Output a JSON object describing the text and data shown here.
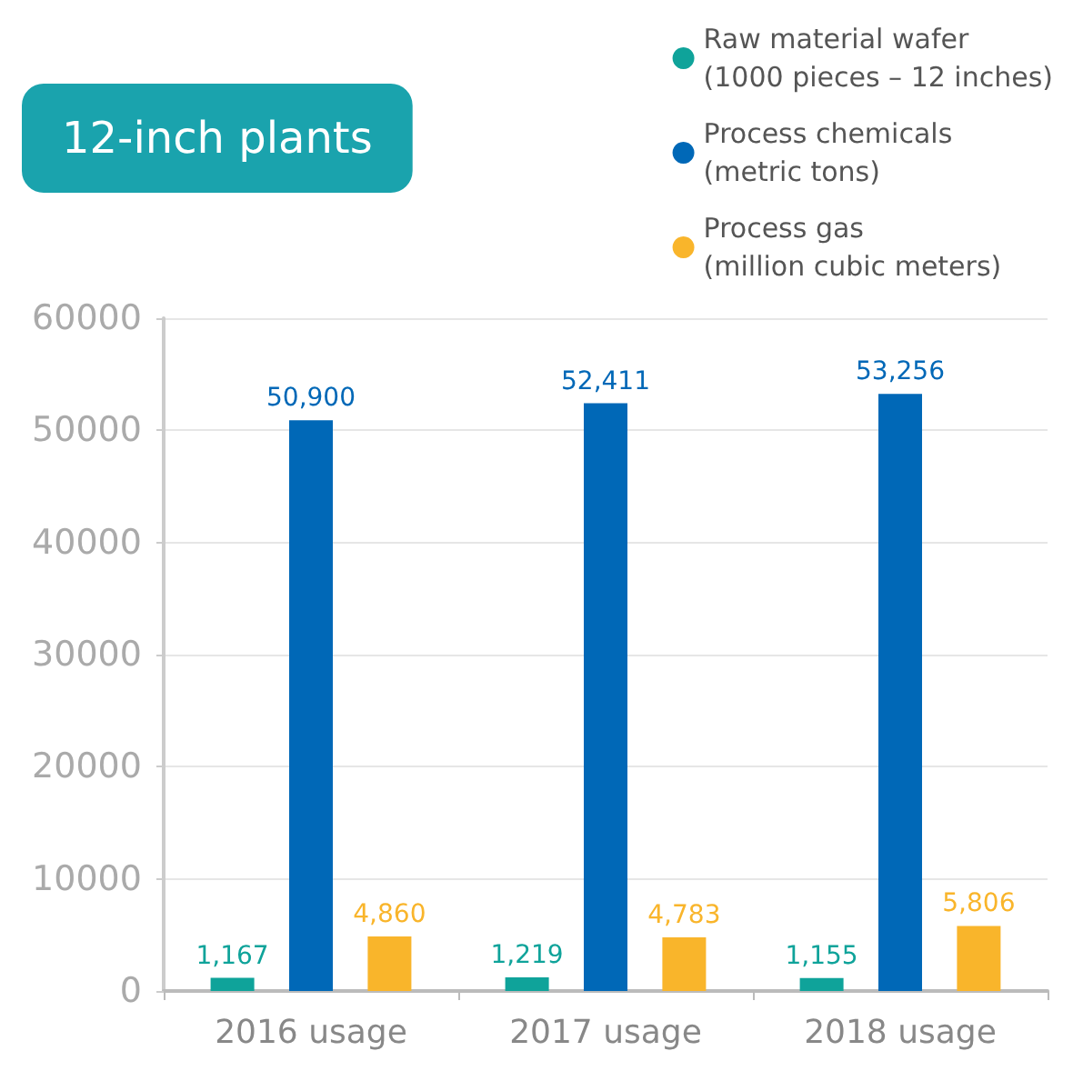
{
  "chart_data": {
    "type": "bar",
    "title": "12-inch plants",
    "categories": [
      "2016 usage",
      "2017 usage",
      "2018 usage"
    ],
    "series": [
      {
        "name": "Raw material wafer\n(1000 pieces – 12 inches)",
        "color": "#0fa39a",
        "values": [
          1167,
          1219,
          1155
        ],
        "value_labels": [
          "1,167",
          "1,219",
          "1,155"
        ]
      },
      {
        "name": "Process chemicals\n(metric tons)",
        "color": "#0068b7",
        "values": [
          50900,
          52411,
          53256
        ],
        "value_labels": [
          "50,900",
          "52,411",
          "53,256"
        ]
      },
      {
        "name": "Process gas\n(million cubic meters)",
        "color": "#f9b52b",
        "values": [
          4860,
          4783,
          5806
        ],
        "value_labels": [
          "4,860",
          "4,783",
          "5,806"
        ]
      }
    ],
    "ylim": [
      0,
      60000
    ],
    "yticks": [
      0,
      10000,
      20000,
      30000,
      40000,
      50000,
      60000
    ],
    "grid": "y",
    "legend": "top right"
  }
}
